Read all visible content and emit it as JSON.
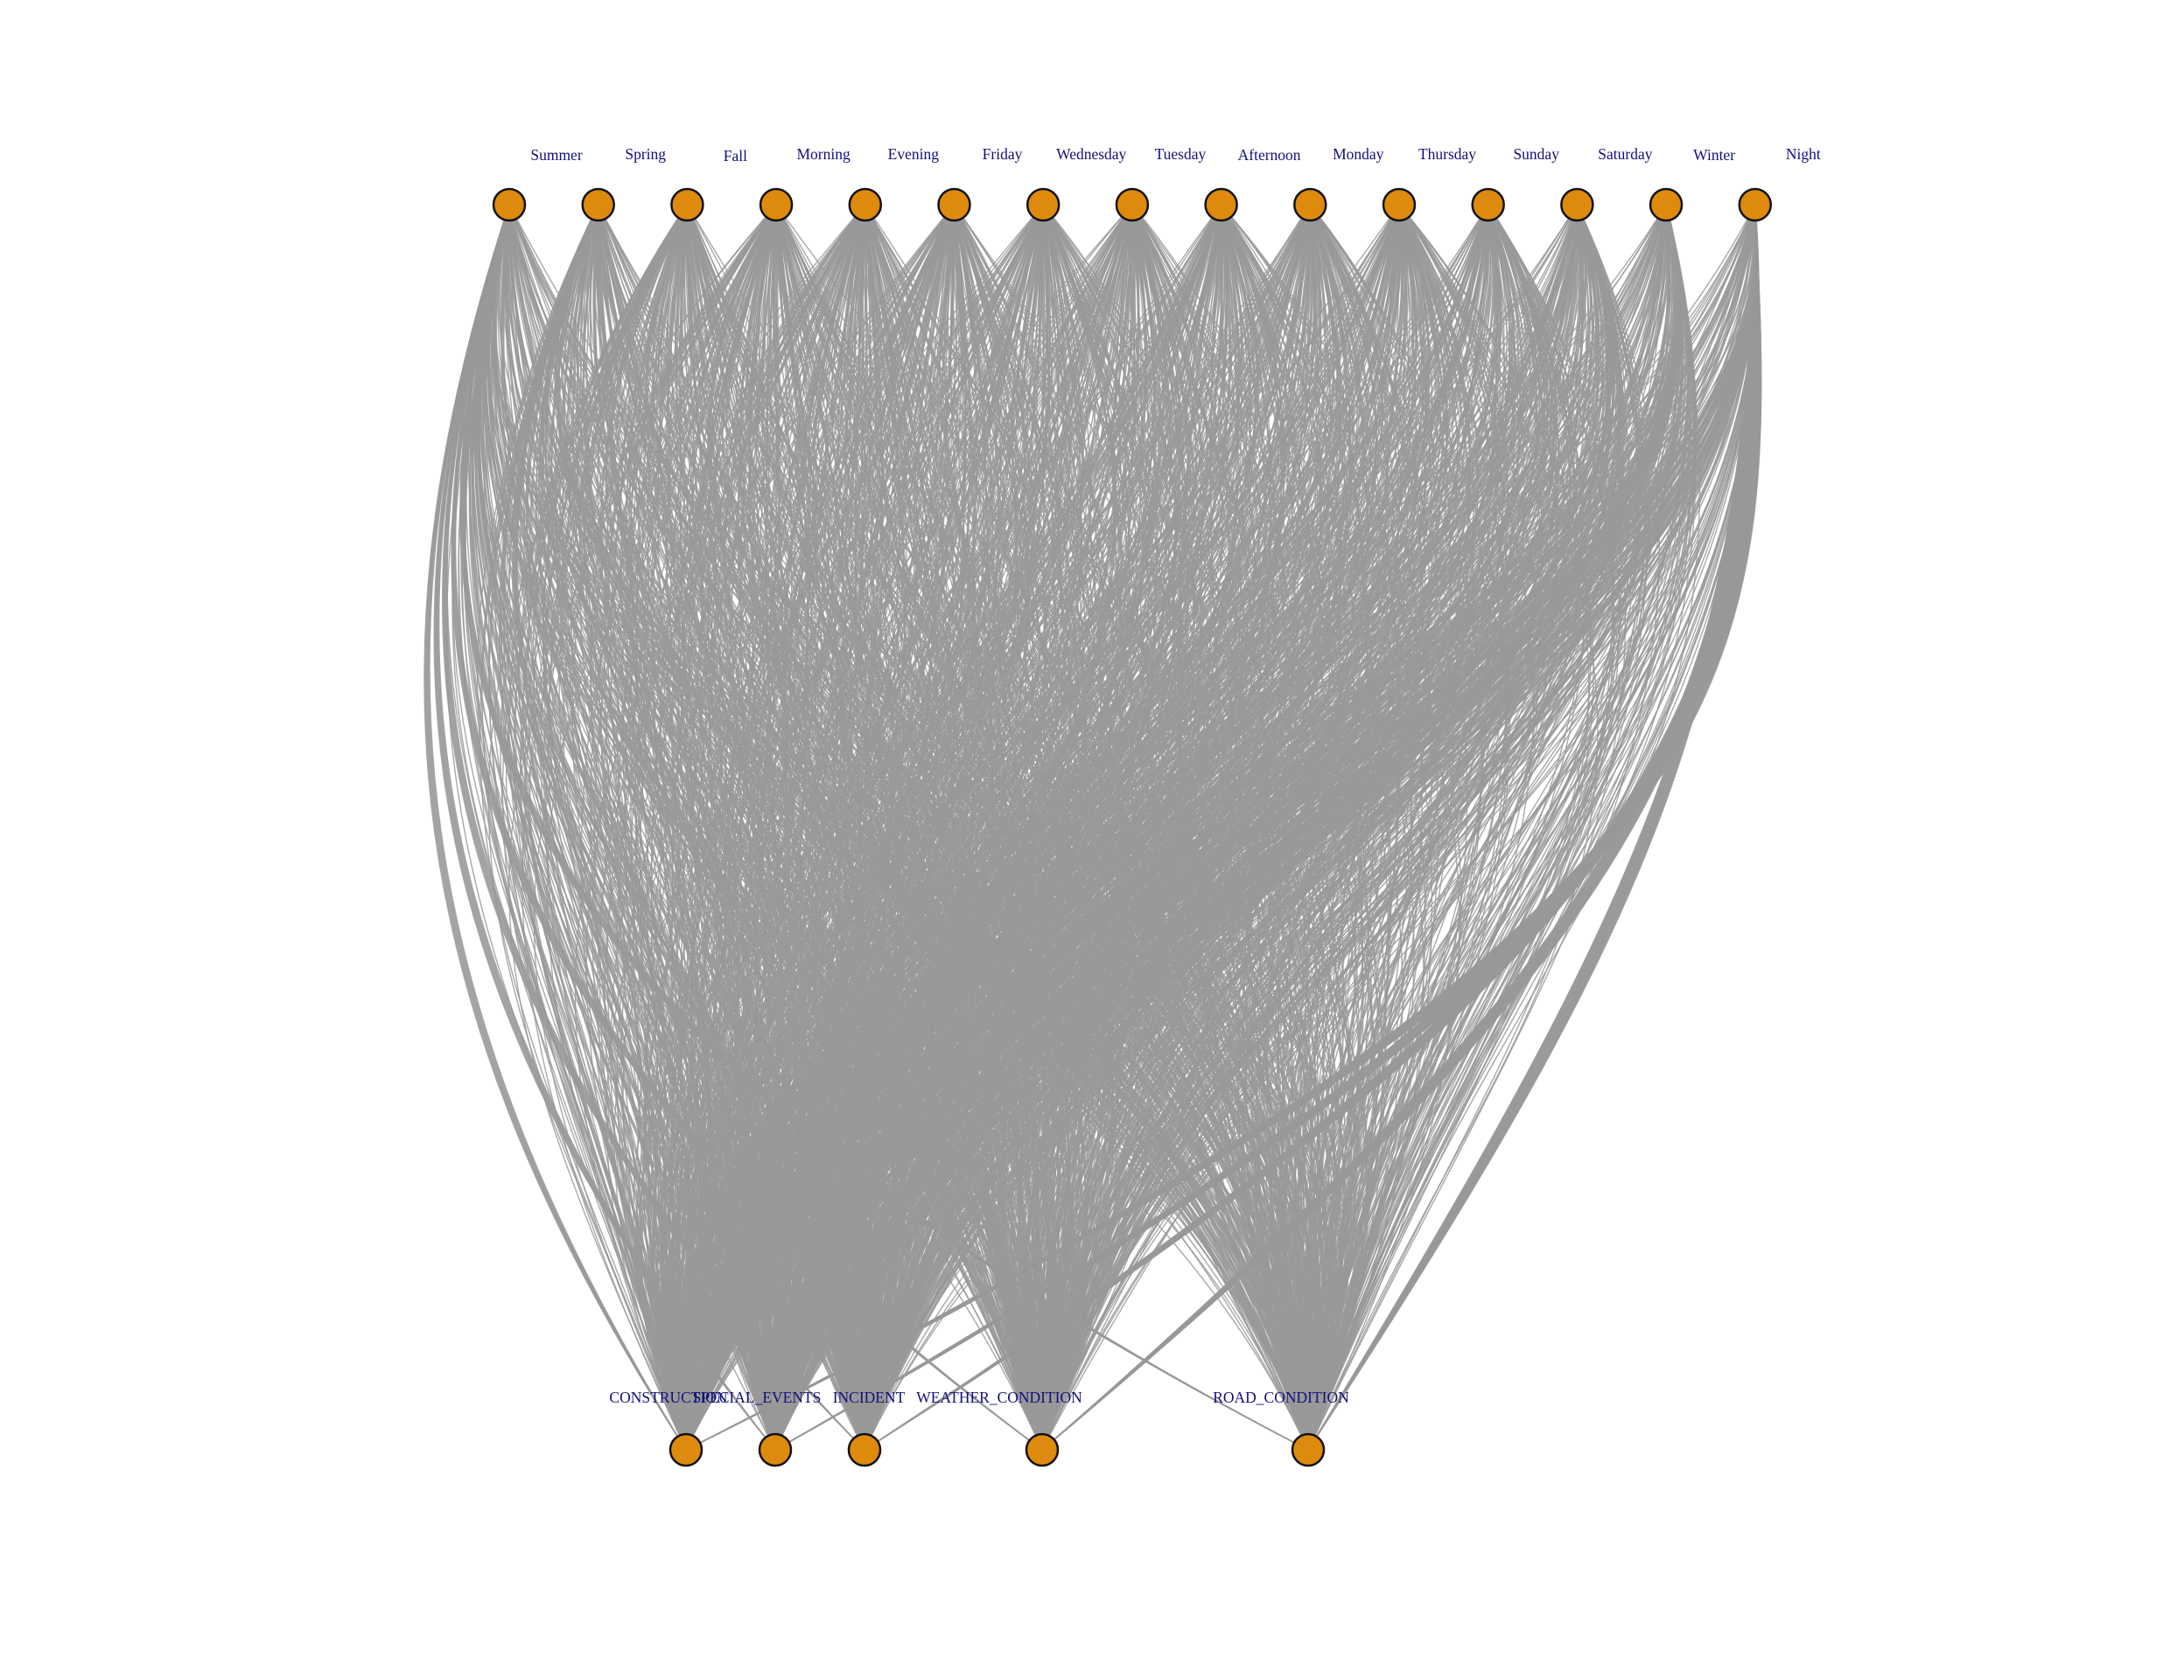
{
  "graph": {
    "node_color": "#DE8A0C",
    "node_border_color": "#111111",
    "edge_color": "#999999",
    "label_color": "#10107A",
    "top_nodes": [
      {
        "id": "summer",
        "label": "Summer"
      },
      {
        "id": "spring",
        "label": "Spring"
      },
      {
        "id": "fall",
        "label": "Fall"
      },
      {
        "id": "morning",
        "label": "Morning"
      },
      {
        "id": "evening",
        "label": "Evening"
      },
      {
        "id": "friday",
        "label": "Friday"
      },
      {
        "id": "wednesday",
        "label": "Wednesday"
      },
      {
        "id": "tuesday",
        "label": "Tuesday"
      },
      {
        "id": "afternoon",
        "label": "Afternoon"
      },
      {
        "id": "monday",
        "label": "Monday"
      },
      {
        "id": "thursday",
        "label": "Thursday"
      },
      {
        "id": "sunday",
        "label": "Sunday"
      },
      {
        "id": "saturday",
        "label": "Saturday"
      },
      {
        "id": "winter",
        "label": "Winter"
      },
      {
        "id": "night",
        "label": "Night"
      }
    ],
    "bottom_nodes": [
      {
        "id": "construction",
        "label": "CONSTRUCTION"
      },
      {
        "id": "special_events",
        "label": "SPECIAL_EVENTS"
      },
      {
        "id": "incident",
        "label": "INCIDENT"
      },
      {
        "id": "weather_condition",
        "label": "WEATHER_CONDITION"
      },
      {
        "id": "road_condition",
        "label": "ROAD_CONDITION"
      }
    ]
  }
}
